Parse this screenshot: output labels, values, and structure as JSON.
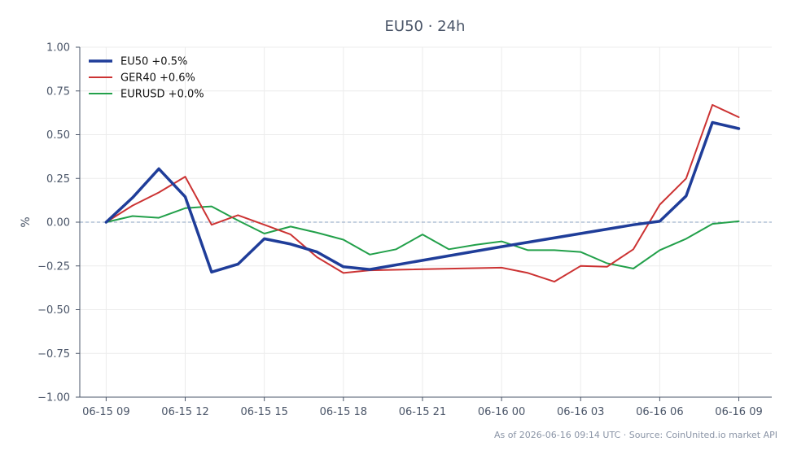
{
  "chart_data": {
    "type": "line",
    "title": "EU50 · 24h",
    "ylabel": "%",
    "xlabel": "",
    "ylim": [
      -1.0,
      1.0
    ],
    "xlim": [
      "06-15 08:00",
      "06-16 10:15"
    ],
    "yticks": [
      -1.0,
      -0.75,
      -0.5,
      -0.25,
      0.0,
      0.25,
      0.5,
      0.75,
      1.0
    ],
    "ytick_labels": [
      "−1.00",
      "−0.75",
      "−0.50",
      "−0.25",
      "0.00",
      "0.25",
      "0.50",
      "0.75",
      "1.00"
    ],
    "xticks": [
      "06-15 09:00",
      "06-15 12:00",
      "06-15 15:00",
      "06-15 18:00",
      "06-15 21:00",
      "06-16 00:00",
      "06-16 03:00",
      "06-16 06:00",
      "06-16 09:00"
    ],
    "xtick_labels": [
      "06-15 09",
      "06-15 12",
      "06-15 15",
      "06-15 18",
      "06-15 21",
      "06-16 00",
      "06-16 03",
      "06-16 06",
      "06-16 09"
    ],
    "grid": true,
    "zero_line": true,
    "legend_position": "top-left",
    "series": [
      {
        "name": "EU50 +0.5%",
        "color": "#1f3d99",
        "x": [
          "06-15 09:00",
          "06-15 10:00",
          "06-15 11:00",
          "06-15 12:00",
          "06-15 13:00",
          "06-15 14:00",
          "06-15 15:00",
          "06-15 16:00",
          "06-15 17:00",
          "06-15 18:00",
          "06-15 19:00",
          "06-16 00:00",
          "06-16 05:00",
          "06-16 06:00",
          "06-16 07:00",
          "06-16 08:00",
          "06-16 09:00"
        ],
        "y": [
          0.0,
          0.14,
          0.305,
          0.145,
          -0.285,
          -0.24,
          -0.095,
          -0.125,
          -0.17,
          -0.255,
          -0.27,
          -0.14,
          -0.015,
          0.005,
          0.15,
          0.57,
          0.535
        ]
      },
      {
        "name": "GER40 +0.6%",
        "color": "#cc3333",
        "x": [
          "06-15 09:00",
          "06-15 10:00",
          "06-15 11:00",
          "06-15 12:00",
          "06-15 13:00",
          "06-15 14:00",
          "06-15 15:00",
          "06-15 16:00",
          "06-15 17:00",
          "06-15 18:00",
          "06-15 19:00",
          "06-16 00:00",
          "06-16 01:00",
          "06-16 02:00",
          "06-16 03:00",
          "06-16 04:00",
          "06-16 05:00",
          "06-16 06:00",
          "06-16 07:00",
          "06-16 08:00",
          "06-16 09:00"
        ],
        "y": [
          0.0,
          0.095,
          0.17,
          0.26,
          -0.015,
          0.04,
          -0.015,
          -0.07,
          -0.2,
          -0.29,
          -0.275,
          -0.26,
          -0.29,
          -0.34,
          -0.25,
          -0.255,
          -0.155,
          0.1,
          0.25,
          0.67,
          0.6
        ]
      },
      {
        "name": "EURUSD +0.0%",
        "color": "#22a04a",
        "x": [
          "06-15 09:00",
          "06-15 10:00",
          "06-15 11:00",
          "06-15 12:00",
          "06-15 13:00",
          "06-15 14:00",
          "06-15 15:00",
          "06-15 16:00",
          "06-15 17:00",
          "06-15 18:00",
          "06-15 19:00",
          "06-15 20:00",
          "06-15 21:00",
          "06-15 22:00",
          "06-15 23:00",
          "06-16 00:00",
          "06-16 01:00",
          "06-16 02:00",
          "06-16 03:00",
          "06-16 04:00",
          "06-16 05:00",
          "06-16 06:00",
          "06-16 07:00",
          "06-16 08:00",
          "06-16 09:00"
        ],
        "y": [
          0.0,
          0.035,
          0.025,
          0.08,
          0.09,
          0.01,
          -0.065,
          -0.025,
          -0.06,
          -0.1,
          -0.185,
          -0.155,
          -0.07,
          -0.155,
          -0.13,
          -0.11,
          -0.16,
          -0.16,
          -0.17,
          -0.235,
          -0.265,
          -0.16,
          -0.095,
          -0.01,
          0.005
        ]
      }
    ]
  },
  "footer": "As of 2026-06-16 09:14 UTC · Source: CoinUnited.io market API"
}
